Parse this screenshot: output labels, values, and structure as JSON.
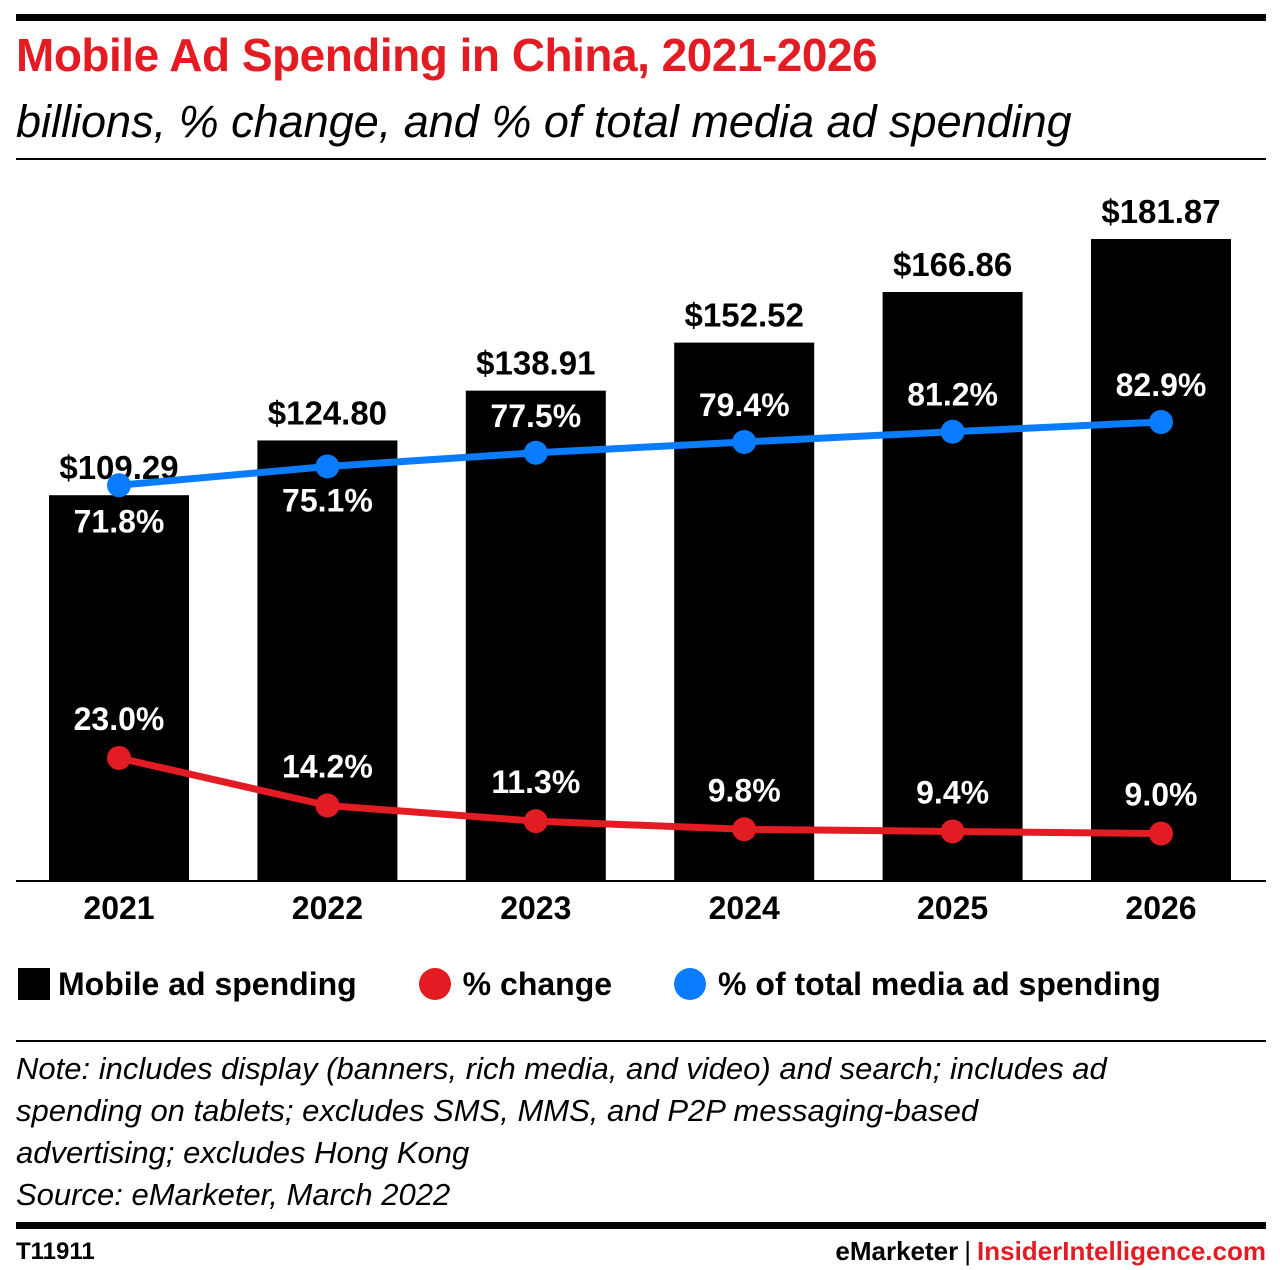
{
  "header": {
    "title": "Mobile Ad Spending in China, 2021-2026",
    "subtitle": "billions, % change, and % of total media ad spending"
  },
  "colors": {
    "accent": "#e31b23",
    "bar": "#000000",
    "change_line": "#e31b23",
    "share_line": "#0a7cff"
  },
  "chart_data": {
    "type": "bar",
    "categories": [
      "2021",
      "2022",
      "2023",
      "2024",
      "2025",
      "2026"
    ],
    "series": [
      {
        "name": "Mobile ad spending",
        "type": "bar",
        "values": [
          109.29,
          124.8,
          138.91,
          152.52,
          166.86,
          181.87
        ],
        "labels": [
          "$109.29",
          "$124.80",
          "$138.91",
          "$152.52",
          "$166.86",
          "$181.87"
        ]
      },
      {
        "name": "% change",
        "type": "line",
        "values": [
          23.0,
          14.2,
          11.3,
          9.8,
          9.4,
          9.0
        ],
        "labels": [
          "23.0%",
          "14.2%",
          "11.3%",
          "9.8%",
          "9.4%",
          "9.0%"
        ]
      },
      {
        "name": "% of total media ad spending",
        "type": "line",
        "values": [
          71.8,
          75.1,
          77.5,
          79.4,
          81.2,
          82.9
        ],
        "labels": [
          "71.8%",
          "75.1%",
          "77.5%",
          "79.4%",
          "81.2%",
          "82.9%"
        ]
      }
    ],
    "legend_position": "bottom",
    "grid": false
  },
  "legend": {
    "bars": "Mobile ad spending",
    "change": "% change",
    "share": "% of total media ad spending"
  },
  "note": {
    "line1": "Note: includes display (banners, rich media, and video) and search; includes ad",
    "line2": "spending on tablets; excludes SMS, MMS, and P2P messaging-based",
    "line3": "advertising; excludes Hong Kong",
    "source": "Source: eMarketer, March 2022"
  },
  "footer": {
    "chart_id": "T11911",
    "brand_left": "eMarketer",
    "separator": "|",
    "brand_right": "InsiderIntelligence.com"
  }
}
